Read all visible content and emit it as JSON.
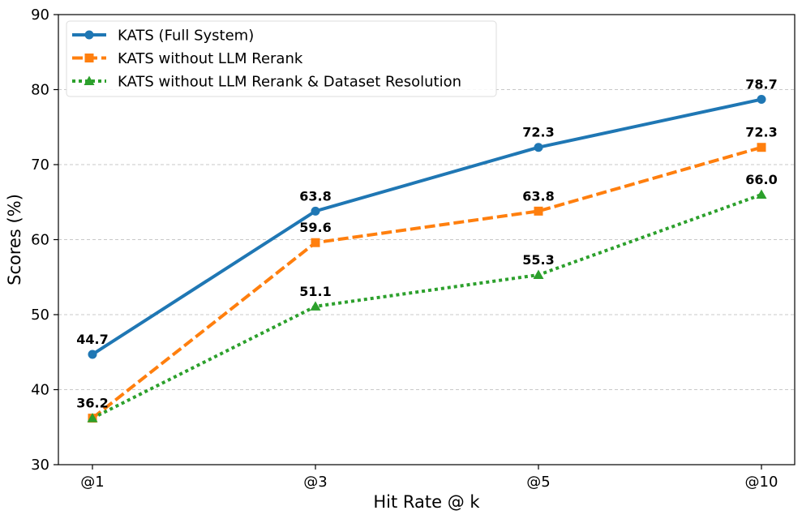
{
  "chart_data": {
    "type": "line",
    "title": "",
    "xlabel": "Hit Rate @ k",
    "ylabel": "Scores (%)",
    "categories": [
      "@1",
      "@3",
      "@5",
      "@10"
    ],
    "ylim": [
      30,
      90
    ],
    "yticks": [
      30,
      40,
      50,
      60,
      70,
      80,
      90
    ],
    "grid": "horizontal dashed",
    "legend_position": "top-left",
    "series": [
      {
        "name": "KATS (Full System)",
        "values": [
          44.7,
          63.8,
          72.3,
          78.7
        ],
        "labels": [
          "44.7",
          "63.8",
          "72.3",
          "78.7"
        ],
        "color": "#1f77b4",
        "line_style": "solid",
        "marker": "circle"
      },
      {
        "name": "KATS without LLM Rerank",
        "values": [
          36.2,
          59.6,
          63.8,
          72.3
        ],
        "labels": [
          "36.2",
          "59.6",
          "63.8",
          "72.3"
        ],
        "color": "#ff7f0e",
        "line_style": "dashed",
        "marker": "square"
      },
      {
        "name": "KATS without LLM Rerank & Dataset Resolution",
        "values": [
          36.2,
          51.1,
          55.3,
          66.0
        ],
        "labels": [
          "",
          "51.1",
          "55.3",
          "66.0"
        ],
        "color": "#2ca02c",
        "line_style": "dotted",
        "marker": "triangle"
      }
    ]
  }
}
